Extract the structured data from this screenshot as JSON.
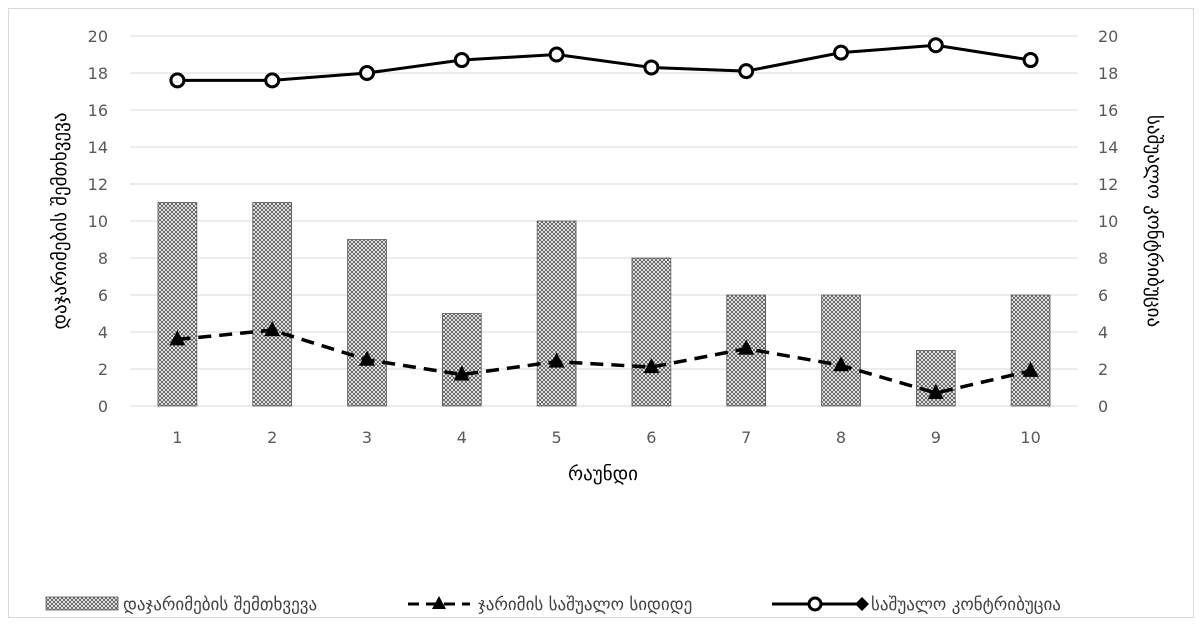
{
  "chart_data": {
    "type": "bar",
    "categories": [
      "1",
      "2",
      "3",
      "4",
      "5",
      "6",
      "7",
      "8",
      "9",
      "10"
    ],
    "xlabel": "რაუნდი",
    "ylabel_left": "დაჯარიმების შემთხვევა",
    "ylabel_right": "საშუალო კონტრიბუცია",
    "ylim": [
      0,
      20
    ],
    "yticks": [
      "0",
      "2",
      "4",
      "6",
      "8",
      "10",
      "12",
      "14",
      "16",
      "18",
      "20"
    ],
    "grid": true,
    "legend_position": "bottom",
    "series": [
      {
        "name": "დაჯარიმების შემთხვევა",
        "type": "bar",
        "axis": "left",
        "pattern": "crosshatch",
        "values": [
          11,
          11,
          9,
          5,
          10,
          8,
          6,
          6,
          3,
          6
        ]
      },
      {
        "name": "ჯარიმის საშუალო სიდიდე",
        "type": "line",
        "style": "dashed",
        "marker": "triangle",
        "axis": "left",
        "values": [
          3.6,
          4.1,
          2.5,
          1.7,
          2.4,
          2.1,
          3.1,
          2.2,
          0.7,
          1.9
        ]
      },
      {
        "name": "საშუალო კონტრიბუცია",
        "type": "line",
        "style": "solid",
        "marker": "circle",
        "axis": "right",
        "values": [
          17.6,
          17.6,
          18.0,
          18.7,
          19.0,
          18.3,
          18.1,
          19.1,
          19.5,
          18.7
        ]
      }
    ],
    "colors": {
      "line": "#000000",
      "grid": "#d9d9d9",
      "tick": "#595959"
    }
  }
}
